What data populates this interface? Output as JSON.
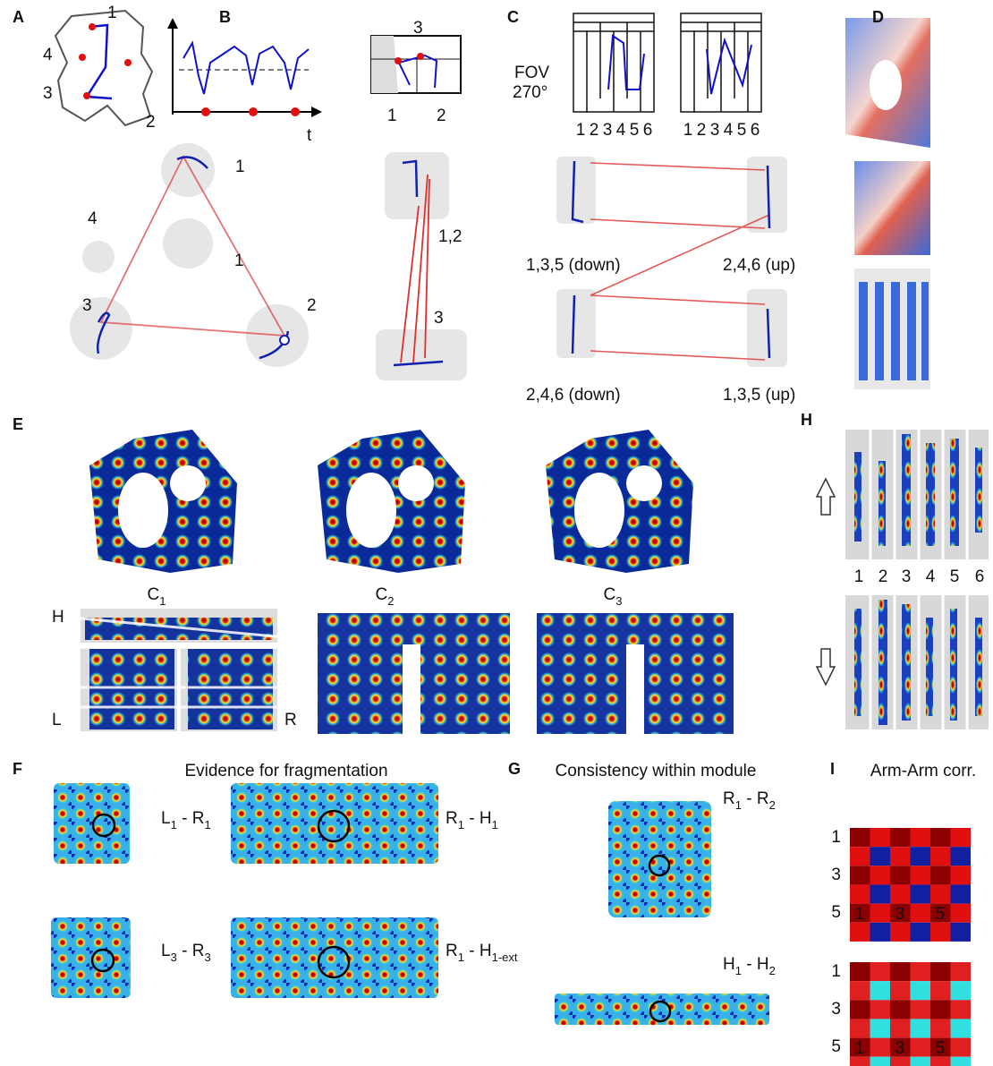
{
  "panel_labels": [
    "A",
    "B",
    "C",
    "D",
    "E",
    "F",
    "G",
    "H",
    "I"
  ],
  "A": {
    "maze_arms": [
      "1",
      "4",
      "3",
      "2"
    ],
    "time_axis": "t",
    "cluster_labels": [
      "1",
      "4",
      "1",
      "3",
      "2"
    ]
  },
  "B": {
    "maze_arms": [
      "3",
      "1",
      "2"
    ],
    "cluster_labels": [
      "1,2",
      "3"
    ]
  },
  "C": {
    "fov": "FOV",
    "fov_angle": "270°",
    "arm_numbers": [
      "1",
      "2",
      "3",
      "4",
      "5",
      "6"
    ],
    "cluster_labels": [
      "1,3,5 (down)",
      "2,4,6 (up)",
      "2,4,6 (down)",
      "1,3,5 (up)"
    ]
  },
  "E": {
    "maps": [
      {
        "base": "C",
        "sub": "1"
      },
      {
        "base": "C",
        "sub": "2"
      },
      {
        "base": "C",
        "sub": "3"
      }
    ],
    "region_labels": [
      "H",
      "L",
      "R"
    ]
  },
  "H": {
    "arm_numbers": [
      "1",
      "2",
      "3",
      "4",
      "5",
      "6"
    ]
  },
  "F": {
    "title": "Evidence for fragmentation",
    "pairs": [
      {
        "a": "L",
        "a_sub": "1",
        "sep": " - ",
        "b": "R",
        "b_sub": "1"
      },
      {
        "a": "R",
        "a_sub": "1",
        "sep": " - ",
        "b": "H",
        "b_sub": "1"
      },
      {
        "a": "L",
        "a_sub": "3",
        "sep": " - ",
        "b": "R",
        "b_sub": "3"
      },
      {
        "a": "R",
        "a_sub": "1",
        "sep": " - ",
        "b": "H",
        "b_sub": "1-ext"
      }
    ]
  },
  "G": {
    "title": "Consistency within module",
    "pairs": [
      {
        "a": "R",
        "a_sub": "1",
        "sep": " - ",
        "b": "R",
        "b_sub": "2"
      },
      {
        "a": "H",
        "a_sub": "1",
        "sep": " - ",
        "b": "H",
        "b_sub": "2"
      }
    ]
  },
  "I": {
    "title": "Arm-Arm corr.",
    "matrices": [
      {
        "yticks": [
          "1",
          "3",
          "5"
        ],
        "xticks": [
          "1",
          "3",
          "5"
        ]
      },
      {
        "yticks": [
          "1",
          "3",
          "5"
        ],
        "xticks": [
          "1",
          "3",
          "5"
        ]
      }
    ]
  }
}
